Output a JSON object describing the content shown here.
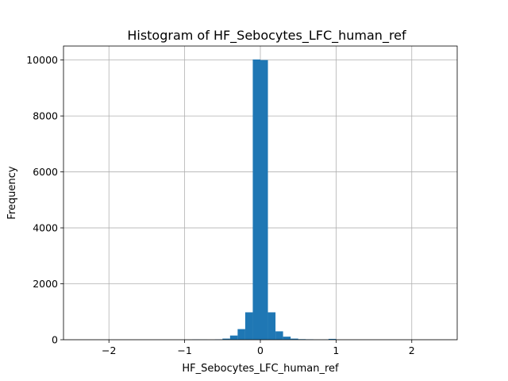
{
  "chart_data": {
    "type": "bar",
    "title": "Histogram of HF_Sebocytes_LFC_human_ref",
    "xlabel": "HF_Sebocytes_LFC_human_ref",
    "ylabel": "Frequency",
    "xlim": [
      -2.6,
      2.6
    ],
    "ylim": [
      0,
      10500
    ],
    "xticks": [
      -2,
      -1,
      0,
      1,
      2
    ],
    "xtick_labels": [
      "−2",
      "−1",
      "0",
      "1",
      "2"
    ],
    "yticks": [
      0,
      2000,
      4000,
      6000,
      8000,
      10000
    ],
    "ytick_labels": [
      "0",
      "2000",
      "4000",
      "6000",
      "8000",
      "10000"
    ],
    "grid": true,
    "bar_color": "#1f77b4",
    "bin_width": 0.1,
    "bins": [
      {
        "x0": -0.9,
        "x1": -0.8,
        "value": 8
      },
      {
        "x0": -0.8,
        "x1": -0.7,
        "value": 4
      },
      {
        "x0": -0.6,
        "x1": -0.5,
        "value": 12
      },
      {
        "x0": -0.5,
        "x1": -0.4,
        "value": 40
      },
      {
        "x0": -0.4,
        "x1": -0.3,
        "value": 150
      },
      {
        "x0": -0.3,
        "x1": -0.2,
        "value": 380
      },
      {
        "x0": -0.2,
        "x1": -0.1,
        "value": 980
      },
      {
        "x0": -0.1,
        "x1": 0.0,
        "value": 10020
      },
      {
        "x0": 0.0,
        "x1": 0.1,
        "value": 10000
      },
      {
        "x0": 0.1,
        "x1": 0.2,
        "value": 980
      },
      {
        "x0": 0.2,
        "x1": 0.3,
        "value": 300
      },
      {
        "x0": 0.3,
        "x1": 0.4,
        "value": 110
      },
      {
        "x0": 0.4,
        "x1": 0.5,
        "value": 40
      },
      {
        "x0": 0.5,
        "x1": 0.6,
        "value": 20
      },
      {
        "x0": 0.6,
        "x1": 0.7,
        "value": 15
      },
      {
        "x0": 0.7,
        "x1": 0.8,
        "value": 4
      },
      {
        "x0": 0.8,
        "x1": 0.9,
        "value": 4
      },
      {
        "x0": 0.9,
        "x1": 1.0,
        "value": 30
      }
    ]
  }
}
